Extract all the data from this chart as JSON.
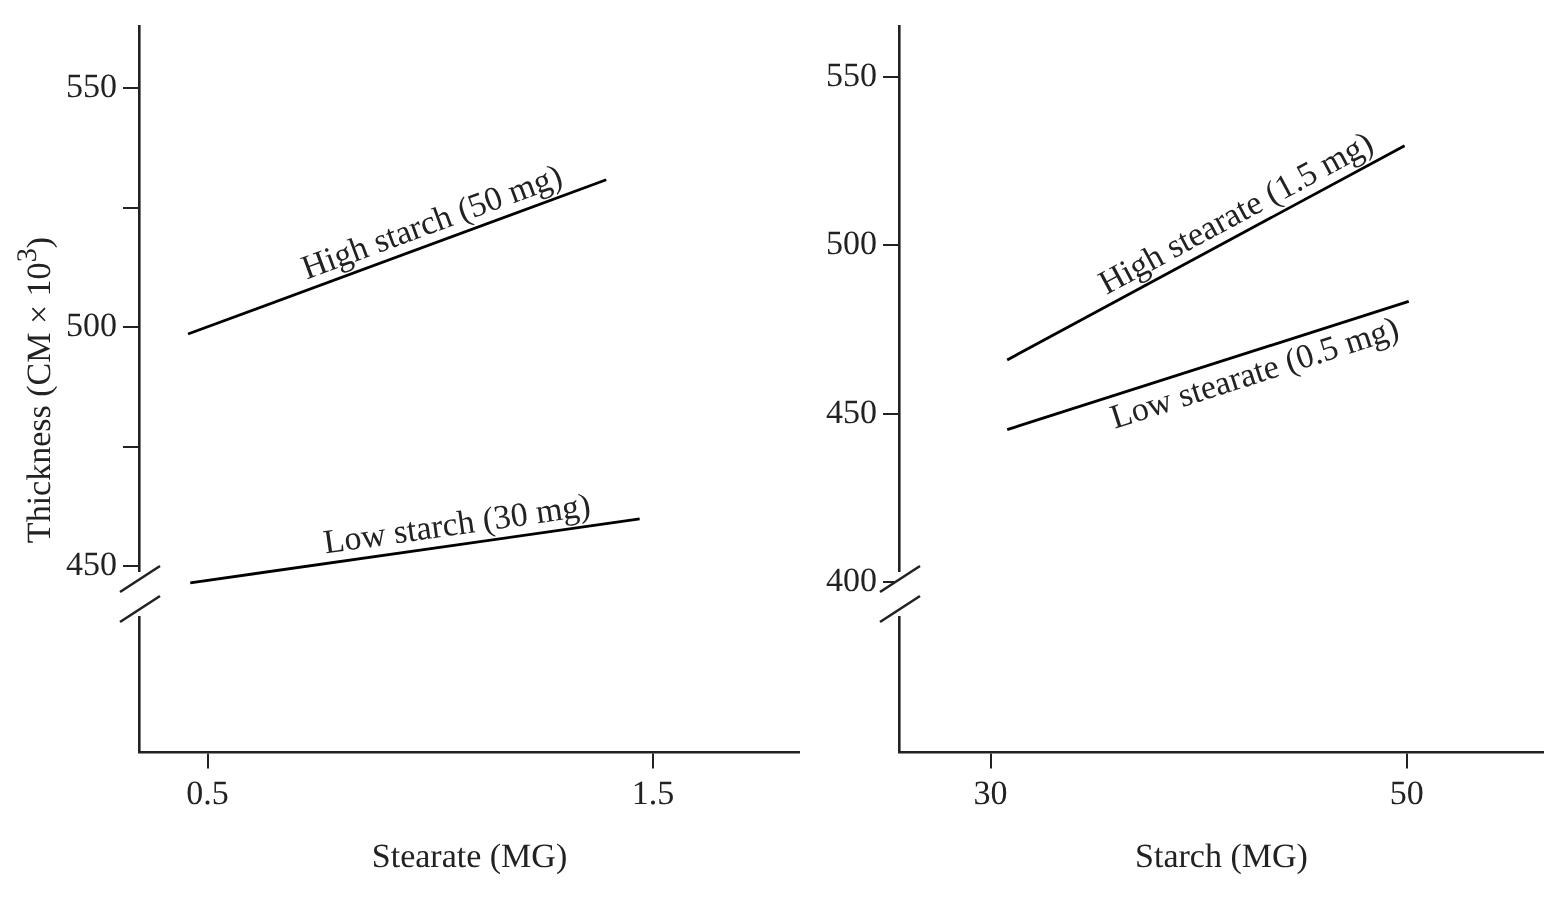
{
  "chart_data": [
    {
      "type": "line",
      "xlabel": "Stearate (MG)",
      "ylabel": "Thickness (CM × 10$^{3}$)",
      "xlim": [
        0.346,
        1.83
      ],
      "xticks": [
        0.5,
        1.5
      ],
      "ylim": [
        411,
        563
      ],
      "yticks": [
        450,
        {
          "value": 475,
          "label": null
        },
        500,
        {
          "value": 525,
          "label": null
        },
        550
      ],
      "grid": false,
      "legend": false,
      "marker": "none",
      "line_style": "solid",
      "series": [
        {
          "name": "High starch (50 mg)",
          "color": "#000000",
          "x": [
            0.456,
            1.395
          ],
          "values": [
            498.6,
            530.9
          ]
        },
        {
          "name": "Low starch (30 mg)",
          "color": "#000000",
          "x": [
            0.461,
            1.47
          ],
          "values": [
            446.5,
            459.9
          ]
        }
      ]
    },
    {
      "type": "line",
      "xlabel": "Starch (MG)",
      "xlim": [
        25.6,
        56.6
      ],
      "xticks": [
        30,
        50
      ],
      "ylim": [
        349.5,
        565
      ],
      "yticks": [
        400,
        450,
        500,
        550
      ],
      "grid": false,
      "legend": false,
      "marker": "none",
      "line_style": "solid",
      "series": [
        {
          "name": "High stearate (1.5 mg)",
          "color": "#000000",
          "x": [
            30.8,
            49.9
          ],
          "values": [
            466.0,
            529.6
          ]
        },
        {
          "name": "Low stearate (0.5 mg)",
          "color": "#000000",
          "x": [
            30.8,
            50.1
          ],
          "values": [
            445.3,
            483.4
          ]
        }
      ]
    }
  ]
}
